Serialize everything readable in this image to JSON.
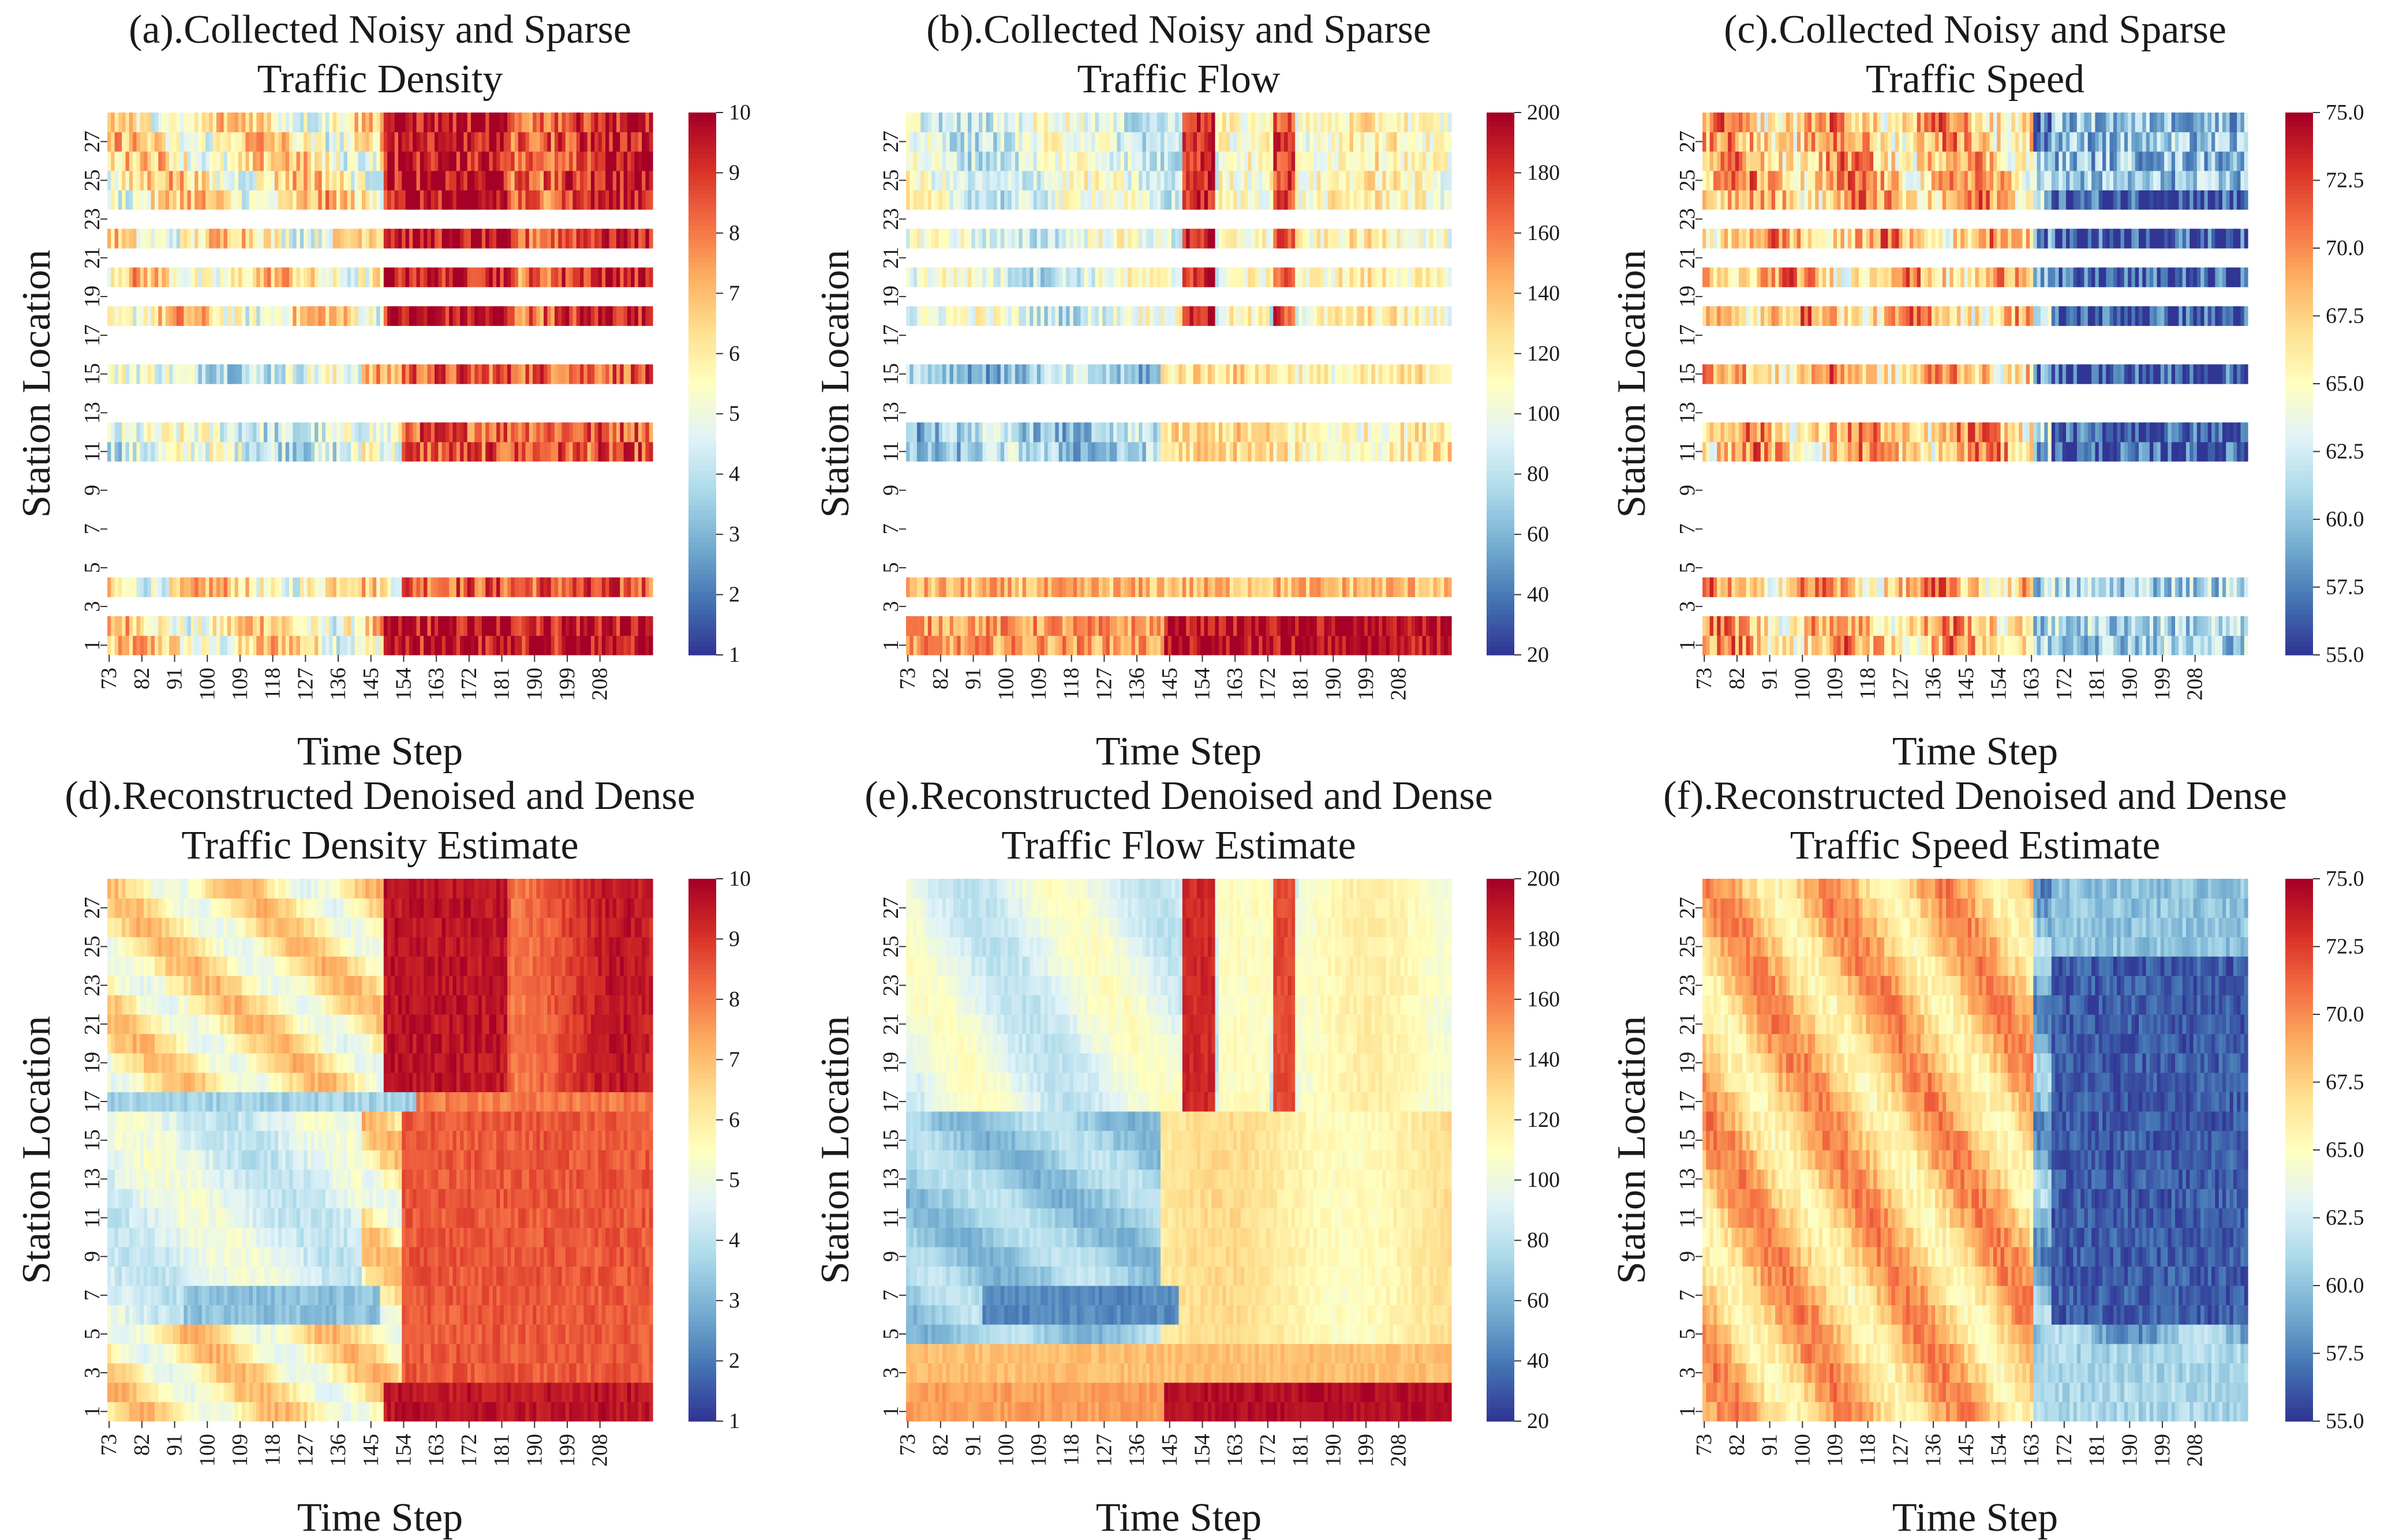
{
  "figure": {
    "ylabel": "Station Location",
    "xlabel": "Time Step",
    "x_tick_labels": [
      "73",
      "82",
      "91",
      "100",
      "109",
      "118",
      "127",
      "136",
      "145",
      "154",
      "163",
      "172",
      "181",
      "190",
      "199",
      "208"
    ],
    "y_tick_labels": [
      "1",
      "3",
      "5",
      "7",
      "9",
      "11",
      "13",
      "15",
      "17",
      "19",
      "21",
      "23",
      "25",
      "27"
    ],
    "colormap": [
      "#313695",
      "#4575b4",
      "#74add1",
      "#abd9e9",
      "#e0f3f8",
      "#ffffbf",
      "#fee090",
      "#fdae61",
      "#f46d43",
      "#d73027",
      "#a50026"
    ]
  },
  "chart_data": [
    {
      "id": "a",
      "type": "heatmap",
      "title_line1": "(a).Collected Noisy and Sparse",
      "title_line2": "Traffic Density",
      "vmin": 1,
      "vmax": 10,
      "colorbar_ticks": [
        "1",
        "2",
        "3",
        "4",
        "5",
        "6",
        "7",
        "8",
        "9",
        "10"
      ],
      "variable": "density",
      "sparse": true,
      "xlabel": "Time Step",
      "ylabel": "Station Location"
    },
    {
      "id": "b",
      "type": "heatmap",
      "title_line1": "(b).Collected Noisy and Sparse",
      "title_line2": "Traffic Flow",
      "vmin": 20,
      "vmax": 200,
      "colorbar_ticks": [
        "20",
        "40",
        "60",
        "80",
        "100",
        "120",
        "140",
        "160",
        "180",
        "200"
      ],
      "variable": "flow",
      "sparse": true,
      "xlabel": "Time Step",
      "ylabel": "Station Location"
    },
    {
      "id": "c",
      "type": "heatmap",
      "title_line1": "(c).Collected Noisy and Sparse",
      "title_line2": "Traffic Speed",
      "vmin": 55,
      "vmax": 75,
      "colorbar_ticks": [
        "55.0",
        "57.5",
        "60.0",
        "62.5",
        "65.0",
        "67.5",
        "70.0",
        "72.5",
        "75.0"
      ],
      "variable": "speed",
      "sparse": true,
      "xlabel": "Time Step",
      "ylabel": "Station Location"
    },
    {
      "id": "d",
      "type": "heatmap",
      "title_line1": "(d).Reconstructed Denoised and Dense",
      "title_line2": "Traffic Density Estimate",
      "vmin": 1,
      "vmax": 10,
      "colorbar_ticks": [
        "1",
        "2",
        "3",
        "4",
        "5",
        "6",
        "7",
        "8",
        "9",
        "10"
      ],
      "variable": "density",
      "sparse": false,
      "xlabel": "Time Step",
      "ylabel": "Station Location"
    },
    {
      "id": "e",
      "type": "heatmap",
      "title_line1": "(e).Reconstructed Denoised and Dense",
      "title_line2": "Traffic Flow Estimate",
      "vmin": 20,
      "vmax": 200,
      "colorbar_ticks": [
        "20",
        "40",
        "60",
        "80",
        "100",
        "120",
        "140",
        "160",
        "180",
        "200"
      ],
      "variable": "flow",
      "sparse": false,
      "xlabel": "Time Step",
      "ylabel": "Station Location"
    },
    {
      "id": "f",
      "type": "heatmap",
      "title_line1": "(f).Reconstructed Denoised and Dense",
      "title_line2": "Traffic Speed Estimate",
      "vmin": 55,
      "vmax": 75,
      "colorbar_ticks": [
        "55.0",
        "57.5",
        "60.0",
        "62.5",
        "65.0",
        "67.5",
        "70.0",
        "72.5",
        "75.0"
      ],
      "variable": "speed",
      "sparse": false,
      "xlabel": "Time Step",
      "ylabel": "Station Location"
    }
  ]
}
